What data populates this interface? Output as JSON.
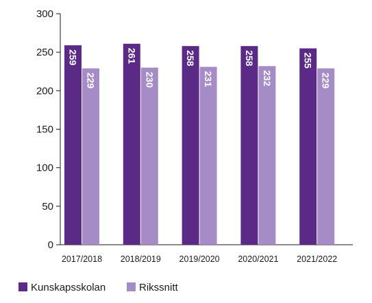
{
  "chart_data": {
    "type": "bar",
    "categories": [
      "2017/2018",
      "2018/2019",
      "2019/2020",
      "2020/2021",
      "2021/2022"
    ],
    "series": [
      {
        "name": "Kunskapsskolan",
        "values": [
          259,
          261,
          258,
          258,
          255
        ],
        "color": "#5b2a86",
        "label_color": "#ffffff"
      },
      {
        "name": "Rikssnitt",
        "values": [
          229,
          230,
          231,
          232,
          229
        ],
        "color": "#a68cc6",
        "label_color": "#ffffff"
      }
    ],
    "ylim": [
      0,
      300
    ],
    "yticks": [
      0,
      50,
      100,
      150,
      200,
      250,
      300
    ],
    "grid": false,
    "legend_position": "bottom-left",
    "title": "",
    "xlabel": "",
    "ylabel": ""
  }
}
